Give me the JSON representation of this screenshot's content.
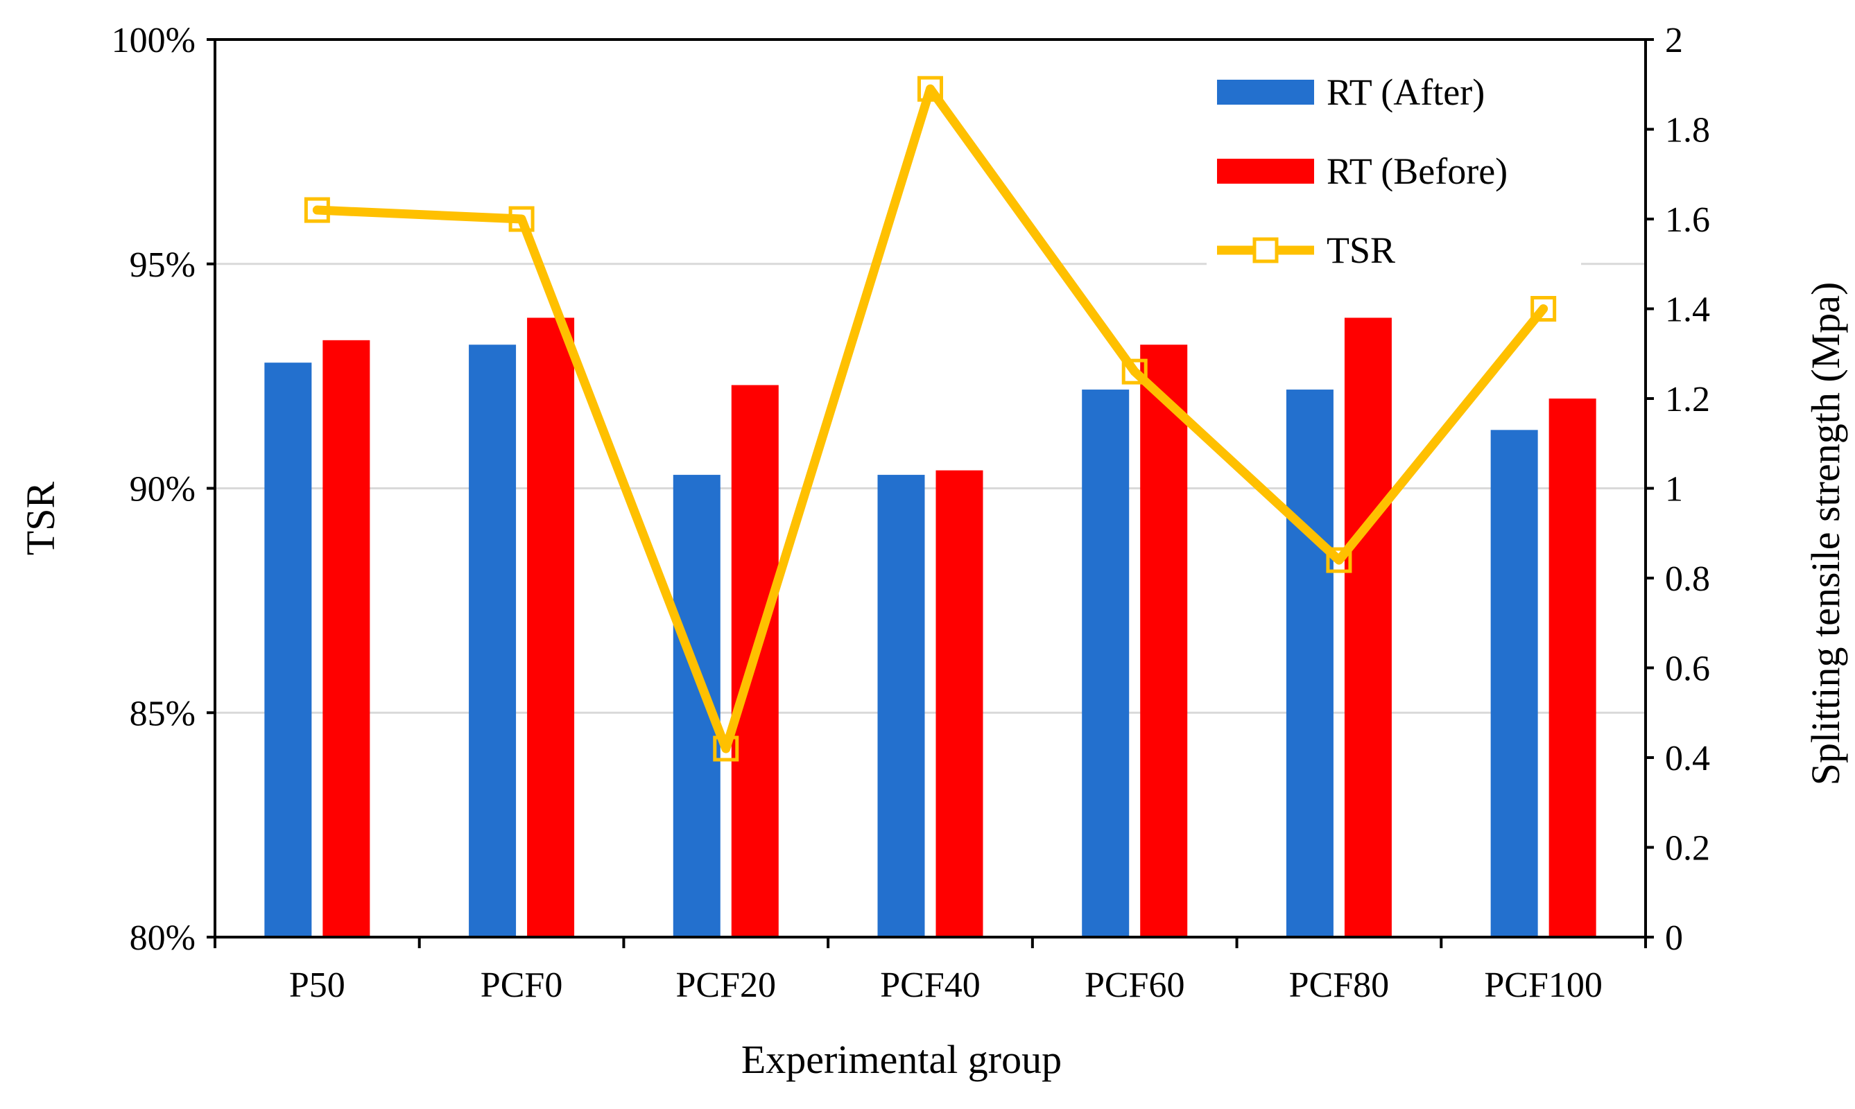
{
  "chart_data": {
    "type": "bar+line",
    "title": "",
    "xlabel": "Experimental group",
    "ylabel_left": "TSR",
    "ylabel_right": "Splitting tensile strength (Mpa)",
    "categories": [
      "P50",
      "PCF0",
      "PCF20",
      "PCF40",
      "PCF60",
      "PCF80",
      "PCF100"
    ],
    "left_axis": {
      "min": 80,
      "max": 100,
      "step": 5,
      "tick_labels": [
        "80%",
        "85%",
        "90%",
        "95%",
        "100%"
      ]
    },
    "right_axis": {
      "min": 0,
      "max": 2,
      "step": 0.2,
      "tick_labels": [
        "0",
        "0.2",
        "0.4",
        "0.6",
        "0.8",
        "1",
        "1.2",
        "1.4",
        "1.6",
        "1.8",
        "2"
      ]
    },
    "grid": true,
    "legend_position": "top-right",
    "series": [
      {
        "name": "RT (After)",
        "kind": "bar",
        "axis": "right",
        "color": "#2370CE",
        "values": [
          1.28,
          1.32,
          1.03,
          1.03,
          1.22,
          1.22,
          1.13
        ]
      },
      {
        "name": "RT (Before)",
        "kind": "bar",
        "axis": "right",
        "color": "#FF0000",
        "values": [
          1.33,
          1.38,
          1.23,
          1.04,
          1.32,
          1.38,
          1.2
        ]
      },
      {
        "name": "TSR",
        "kind": "line",
        "axis": "left",
        "color": "#FFC000",
        "marker": "square-open",
        "values": [
          96.2,
          96.0,
          84.2,
          98.9,
          92.6,
          88.4,
          94.0
        ]
      }
    ]
  }
}
